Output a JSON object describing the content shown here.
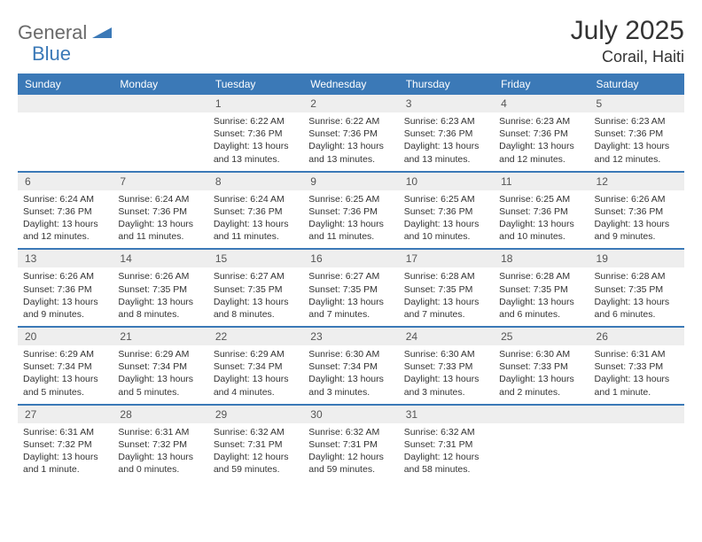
{
  "brand": {
    "part1": "General",
    "part2": "Blue"
  },
  "title": "July 2025",
  "location": "Corail, Haiti",
  "colors": {
    "brand_blue": "#3b79b7",
    "brand_gray": "#6a6a6a",
    "header_bg": "#3b79b7",
    "daynum_bg": "#eeeeee",
    "text": "#333333",
    "page_bg": "#ffffff"
  },
  "weekdays": [
    "Sunday",
    "Monday",
    "Tuesday",
    "Wednesday",
    "Thursday",
    "Friday",
    "Saturday"
  ],
  "weeks": [
    [
      null,
      null,
      {
        "n": "1",
        "sunrise": "6:22 AM",
        "sunset": "7:36 PM",
        "daylight": "13 hours and 13 minutes."
      },
      {
        "n": "2",
        "sunrise": "6:22 AM",
        "sunset": "7:36 PM",
        "daylight": "13 hours and 13 minutes."
      },
      {
        "n": "3",
        "sunrise": "6:23 AM",
        "sunset": "7:36 PM",
        "daylight": "13 hours and 13 minutes."
      },
      {
        "n": "4",
        "sunrise": "6:23 AM",
        "sunset": "7:36 PM",
        "daylight": "13 hours and 12 minutes."
      },
      {
        "n": "5",
        "sunrise": "6:23 AM",
        "sunset": "7:36 PM",
        "daylight": "13 hours and 12 minutes."
      }
    ],
    [
      {
        "n": "6",
        "sunrise": "6:24 AM",
        "sunset": "7:36 PM",
        "daylight": "13 hours and 12 minutes."
      },
      {
        "n": "7",
        "sunrise": "6:24 AM",
        "sunset": "7:36 PM",
        "daylight": "13 hours and 11 minutes."
      },
      {
        "n": "8",
        "sunrise": "6:24 AM",
        "sunset": "7:36 PM",
        "daylight": "13 hours and 11 minutes."
      },
      {
        "n": "9",
        "sunrise": "6:25 AM",
        "sunset": "7:36 PM",
        "daylight": "13 hours and 11 minutes."
      },
      {
        "n": "10",
        "sunrise": "6:25 AM",
        "sunset": "7:36 PM",
        "daylight": "13 hours and 10 minutes."
      },
      {
        "n": "11",
        "sunrise": "6:25 AM",
        "sunset": "7:36 PM",
        "daylight": "13 hours and 10 minutes."
      },
      {
        "n": "12",
        "sunrise": "6:26 AM",
        "sunset": "7:36 PM",
        "daylight": "13 hours and 9 minutes."
      }
    ],
    [
      {
        "n": "13",
        "sunrise": "6:26 AM",
        "sunset": "7:36 PM",
        "daylight": "13 hours and 9 minutes."
      },
      {
        "n": "14",
        "sunrise": "6:26 AM",
        "sunset": "7:35 PM",
        "daylight": "13 hours and 8 minutes."
      },
      {
        "n": "15",
        "sunrise": "6:27 AM",
        "sunset": "7:35 PM",
        "daylight": "13 hours and 8 minutes."
      },
      {
        "n": "16",
        "sunrise": "6:27 AM",
        "sunset": "7:35 PM",
        "daylight": "13 hours and 7 minutes."
      },
      {
        "n": "17",
        "sunrise": "6:28 AM",
        "sunset": "7:35 PM",
        "daylight": "13 hours and 7 minutes."
      },
      {
        "n": "18",
        "sunrise": "6:28 AM",
        "sunset": "7:35 PM",
        "daylight": "13 hours and 6 minutes."
      },
      {
        "n": "19",
        "sunrise": "6:28 AM",
        "sunset": "7:35 PM",
        "daylight": "13 hours and 6 minutes."
      }
    ],
    [
      {
        "n": "20",
        "sunrise": "6:29 AM",
        "sunset": "7:34 PM",
        "daylight": "13 hours and 5 minutes."
      },
      {
        "n": "21",
        "sunrise": "6:29 AM",
        "sunset": "7:34 PM",
        "daylight": "13 hours and 5 minutes."
      },
      {
        "n": "22",
        "sunrise": "6:29 AM",
        "sunset": "7:34 PM",
        "daylight": "13 hours and 4 minutes."
      },
      {
        "n": "23",
        "sunrise": "6:30 AM",
        "sunset": "7:34 PM",
        "daylight": "13 hours and 3 minutes."
      },
      {
        "n": "24",
        "sunrise": "6:30 AM",
        "sunset": "7:33 PM",
        "daylight": "13 hours and 3 minutes."
      },
      {
        "n": "25",
        "sunrise": "6:30 AM",
        "sunset": "7:33 PM",
        "daylight": "13 hours and 2 minutes."
      },
      {
        "n": "26",
        "sunrise": "6:31 AM",
        "sunset": "7:33 PM",
        "daylight": "13 hours and 1 minute."
      }
    ],
    [
      {
        "n": "27",
        "sunrise": "6:31 AM",
        "sunset": "7:32 PM",
        "daylight": "13 hours and 1 minute."
      },
      {
        "n": "28",
        "sunrise": "6:31 AM",
        "sunset": "7:32 PM",
        "daylight": "13 hours and 0 minutes."
      },
      {
        "n": "29",
        "sunrise": "6:32 AM",
        "sunset": "7:31 PM",
        "daylight": "12 hours and 59 minutes."
      },
      {
        "n": "30",
        "sunrise": "6:32 AM",
        "sunset": "7:31 PM",
        "daylight": "12 hours and 59 minutes."
      },
      {
        "n": "31",
        "sunrise": "6:32 AM",
        "sunset": "7:31 PM",
        "daylight": "12 hours and 58 minutes."
      },
      null,
      null
    ]
  ],
  "labels": {
    "sunrise": "Sunrise: ",
    "sunset": "Sunset: ",
    "daylight": "Daylight: "
  }
}
